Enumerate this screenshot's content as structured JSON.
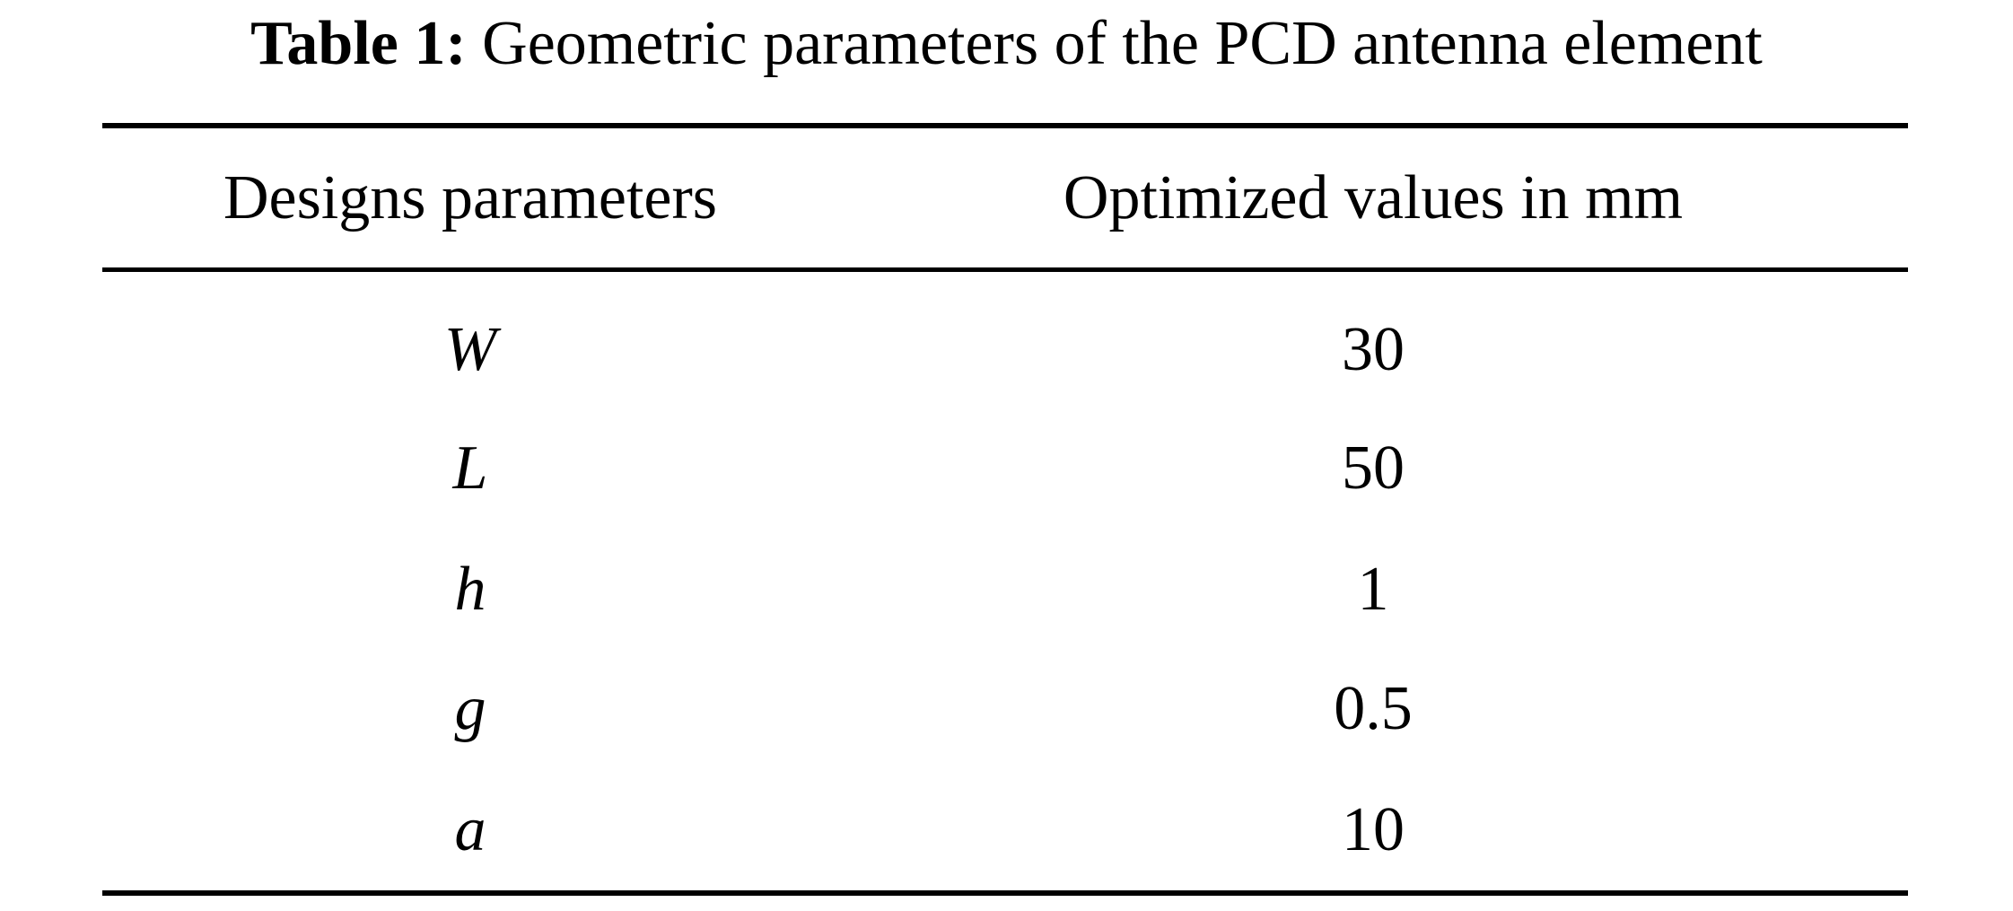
{
  "caption": {
    "label": "Table 1:",
    "text": "Geometric parameters of the PCD antenna element"
  },
  "table": {
    "headers": [
      "Designs parameters",
      "Optimized values in mm"
    ],
    "rows": [
      {
        "parameter": "W",
        "value": "30"
      },
      {
        "parameter": "L",
        "value": "50"
      },
      {
        "parameter": "h",
        "value": "1"
      },
      {
        "parameter": "g",
        "value": "0.5"
      },
      {
        "parameter": "a",
        "value": "10"
      }
    ]
  }
}
